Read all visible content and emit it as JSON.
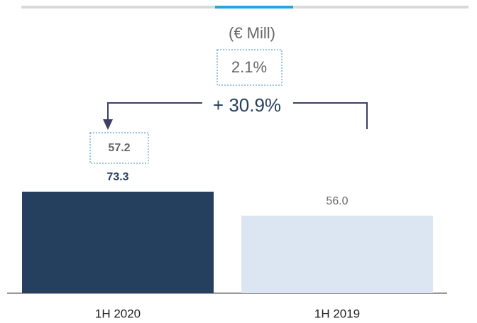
{
  "chart_data": {
    "type": "bar",
    "subtitle": "(€ Mill)",
    "annotations": [
      "2.1%",
      "+ 30.9%",
      "57.2"
    ],
    "categories": [
      "1H 2020",
      "1H 2019"
    ],
    "values": [
      73.3,
      56.0
    ],
    "value_labels": [
      "73.3",
      "56.0"
    ],
    "colors": [
      "#253f5e",
      "#dce6f2"
    ]
  }
}
